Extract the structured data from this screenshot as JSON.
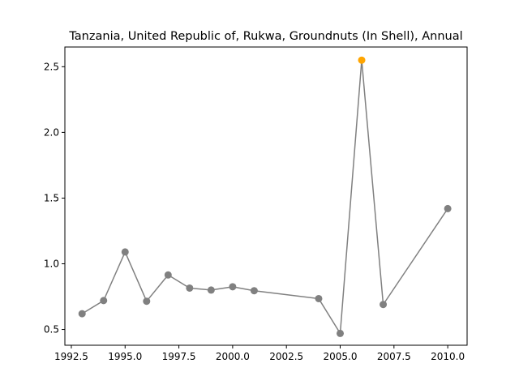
{
  "chart_data": {
    "type": "line",
    "title": "Tanzania, United Republic of, Rukwa, Groundnuts (In Shell), Annual",
    "xlabel": "",
    "ylabel": "",
    "xlim": [
      1992.2,
      2010.9
    ],
    "ylim": [
      0.38,
      2.65
    ],
    "x_ticks": [
      1992.5,
      1995.0,
      1997.5,
      2000.0,
      2002.5,
      2005.0,
      2007.5,
      2010.0
    ],
    "x_tick_labels": [
      "1992.5",
      "1995.0",
      "1997.5",
      "2000.0",
      "2002.5",
      "2005.0",
      "2007.5",
      "2010.0"
    ],
    "y_ticks": [
      0.5,
      1.0,
      1.5,
      2.0,
      2.5
    ],
    "y_tick_labels": [
      "0.5",
      "1.0",
      "1.5",
      "2.0",
      "2.5"
    ],
    "grid": false,
    "series": [
      {
        "color": "#808080",
        "points": [
          {
            "x": 1993,
            "y": 0.62
          },
          {
            "x": 1994,
            "y": 0.72
          },
          {
            "x": 1995,
            "y": 1.09
          },
          {
            "x": 1996,
            "y": 0.715
          },
          {
            "x": 1997,
            "y": 0.915
          },
          {
            "x": 1998,
            "y": 0.815
          },
          {
            "x": 1999,
            "y": 0.8
          },
          {
            "x": 2000,
            "y": 0.825
          },
          {
            "x": 2001,
            "y": 0.795
          },
          {
            "x": 2004,
            "y": 0.735
          },
          {
            "x": 2005,
            "y": 0.47
          },
          {
            "x": 2006,
            "y": 2.55
          },
          {
            "x": 2007,
            "y": 0.69
          },
          {
            "x": 2010,
            "y": 1.42
          }
        ]
      }
    ],
    "highlight": {
      "x": 2006,
      "y": 2.55,
      "color": "#ffa500"
    }
  }
}
